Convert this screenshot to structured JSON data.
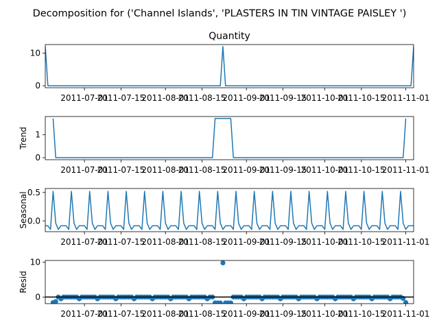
{
  "figure": {
    "suptitle": "Decomposition for ('Channel Islands', 'PLASTERS IN TIN VINTAGE PAISLEY ')"
  },
  "chart_data": [
    {
      "type": "line",
      "title": "Quantity",
      "ylabel": "",
      "x_range": [
        "2011-06-16",
        "2011-11-04"
      ],
      "y_range": [
        -0.6,
        12.6
      ],
      "yticks": [
        0,
        10
      ],
      "xticks": [
        "2011-07-01",
        "2011-07-15",
        "2011-08-01",
        "2011-08-15",
        "2011-09-01",
        "2011-09-15",
        "2011-10-01",
        "2011-10-15",
        "2011-11-01"
      ],
      "xtick_labels": [
        "2011-07-01",
        "2011-07-15",
        "2011-08-01",
        "2011-08-15",
        "2011-09-01",
        "2011-09-15",
        "2011-10-01",
        "2011-10-15",
        "2011-11-01"
      ],
      "color": "#1f77b4",
      "points": [
        [
          "2011-06-16",
          12
        ],
        [
          "2011-06-17",
          0
        ],
        [
          "2011-08-22",
          0
        ],
        [
          "2011-08-23",
          12
        ],
        [
          "2011-08-24",
          0
        ],
        [
          "2011-11-03",
          0
        ],
        [
          "2011-11-04",
          12
        ]
      ]
    },
    {
      "type": "line",
      "title": "",
      "ylabel": "Trend",
      "x_range": [
        "2011-06-16",
        "2011-11-04"
      ],
      "y_range": [
        -0.09,
        1.8
      ],
      "yticks": [
        0,
        1
      ],
      "xticks": [
        "2011-07-01",
        "2011-07-15",
        "2011-08-01",
        "2011-08-15",
        "2011-09-01",
        "2011-09-15",
        "2011-10-01",
        "2011-10-15",
        "2011-11-01"
      ],
      "xtick_labels": [
        "2011-07-01",
        "2011-07-15",
        "2011-08-01",
        "2011-08-15",
        "2011-09-01",
        "2011-09-15",
        "2011-10-01",
        "2011-10-15",
        "2011-11-01"
      ],
      "color": "#1f77b4",
      "points": [
        [
          "2011-06-19",
          1.714
        ],
        [
          "2011-06-20",
          0
        ],
        [
          "2011-08-19",
          0
        ],
        [
          "2011-08-20",
          1.714
        ],
        [
          "2011-08-26",
          1.714
        ],
        [
          "2011-08-27",
          0
        ],
        [
          "2011-10-31",
          0
        ],
        [
          "2011-11-01",
          1.714
        ]
      ]
    },
    {
      "type": "line",
      "title": "",
      "ylabel": "Seasonal",
      "x_range": [
        "2011-06-16",
        "2011-11-04"
      ],
      "y_range": [
        -0.19,
        0.57
      ],
      "yticks": [
        0.0,
        0.5
      ],
      "xticks": [
        "2011-07-01",
        "2011-07-15",
        "2011-08-01",
        "2011-08-15",
        "2011-09-01",
        "2011-09-15",
        "2011-10-01",
        "2011-10-15",
        "2011-11-01"
      ],
      "xtick_labels": [
        "2011-07-01",
        "2011-07-15",
        "2011-08-01",
        "2011-08-15",
        "2011-09-01",
        "2011-09-15",
        "2011-10-01",
        "2011-10-15",
        "2011-11-01"
      ],
      "color": "#1f77b4",
      "period": 7,
      "pattern": [
        -0.086,
        -0.086,
        -0.15,
        0.52,
        -0.04,
        -0.15,
        -0.086
      ],
      "start": "2011-06-16",
      "end": "2011-11-04"
    },
    {
      "type": "scatter",
      "title": "",
      "ylabel": "Resid",
      "x_range": [
        "2011-06-16",
        "2011-11-04"
      ],
      "y_range": [
        -1.9,
        10.5
      ],
      "yticks": [
        0,
        10
      ],
      "baseline": 0,
      "xticks": [
        "2011-07-01",
        "2011-07-15",
        "2011-08-01",
        "2011-08-15",
        "2011-09-01",
        "2011-09-15",
        "2011-10-01",
        "2011-10-15",
        "2011-11-01"
      ],
      "xtick_labels": [
        "2011-07-01",
        "2011-07-15",
        "2011-08-01",
        "2011-08-15",
        "2011-09-01",
        "2011-09-15",
        "2011-10-01",
        "2011-10-15",
        "2011-11-01"
      ],
      "color": "#1f77b4",
      "base_points": [
        "2011-06-19",
        "2011-11-01",
        0.0
      ],
      "periodic_dip": {
        "offset_days": 3,
        "period": 7,
        "value": -0.52
      },
      "overrides": [
        [
          "2011-06-19",
          -1.6
        ],
        [
          "2011-06-20",
          -1.3
        ],
        [
          "2011-08-20",
          -1.7
        ],
        [
          "2011-08-21",
          -1.7
        ],
        [
          "2011-08-22",
          -1.7
        ],
        [
          "2011-08-23",
          9.8
        ],
        [
          "2011-08-24",
          -1.7
        ],
        [
          "2011-08-25",
          -1.7
        ],
        [
          "2011-08-26",
          -1.7
        ],
        [
          "2011-10-31",
          -0.4
        ],
        [
          "2011-11-01",
          -1.6
        ]
      ]
    }
  ]
}
